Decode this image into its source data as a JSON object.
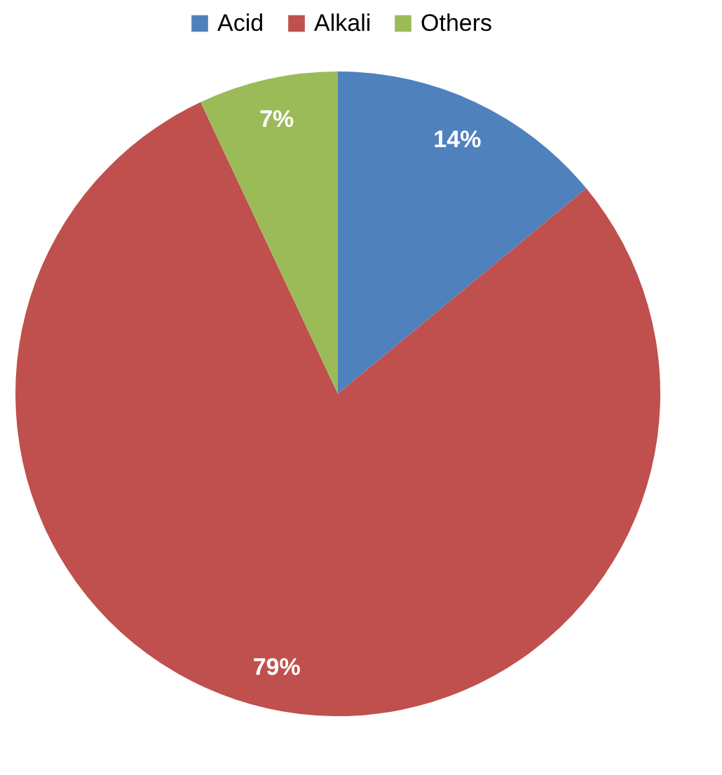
{
  "chart_data": {
    "type": "pie",
    "categories": [
      "Acid",
      "Alkali",
      "Others"
    ],
    "values": [
      14,
      79,
      7
    ],
    "colors": [
      "#4f81bd",
      "#c0504d",
      "#9bbb59"
    ],
    "value_labels": [
      "14%",
      "79%",
      "7%"
    ],
    "legend": "top"
  }
}
